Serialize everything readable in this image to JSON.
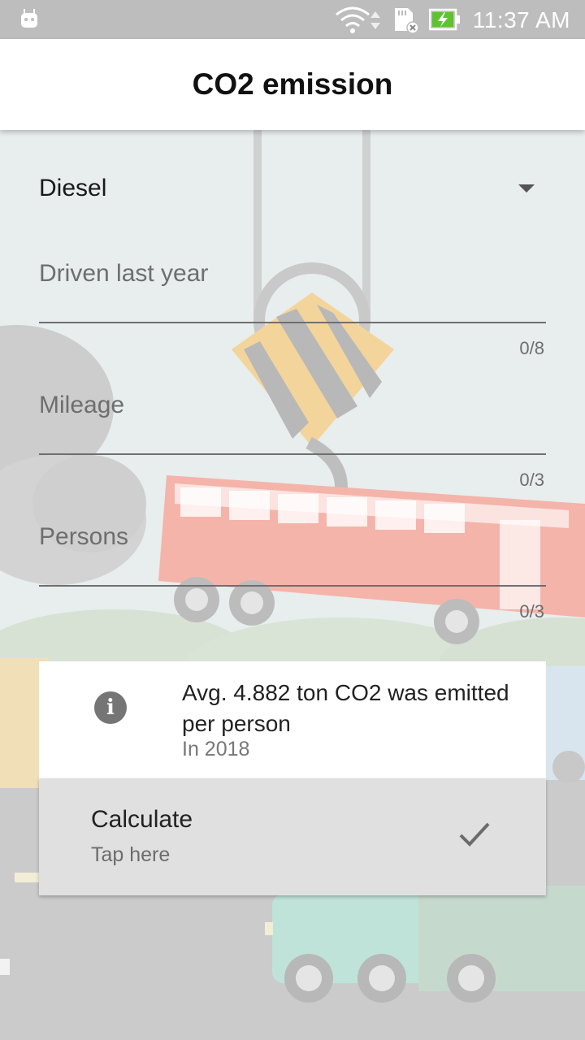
{
  "status_bar": {
    "time": "11:37 AM"
  },
  "app_bar": {
    "title": "CO2 emission"
  },
  "fuel_dropdown": {
    "selected": "Diesel"
  },
  "fields": [
    {
      "label": "Driven last year",
      "counter": "0/8",
      "value": ""
    },
    {
      "label": "Mileage",
      "counter": "0/3",
      "value": ""
    },
    {
      "label": "Persons",
      "counter": "0/3",
      "value": ""
    }
  ],
  "info_card": {
    "text": "Avg. 4.882 ton CO2 was emitted per person",
    "subtext": "In 2018"
  },
  "calculate_card": {
    "title": "Calculate",
    "subtitle": "Tap here"
  },
  "colors": {
    "status_bar": "#bdbdbd",
    "app_bar": "#ffffff",
    "sky": "#e9eeee",
    "road": "#c8c8c8",
    "bus": "#f3b1a8",
    "info_icon": "#757575",
    "calc_card": "#e0e0e0"
  },
  "icons": {
    "status": [
      "android-icon",
      "wifi-icon",
      "sd-card-icon",
      "battery-charging-icon"
    ],
    "dropdown": "arrow-drop-down-icon",
    "info": "info-icon",
    "calculate": "check-icon"
  }
}
